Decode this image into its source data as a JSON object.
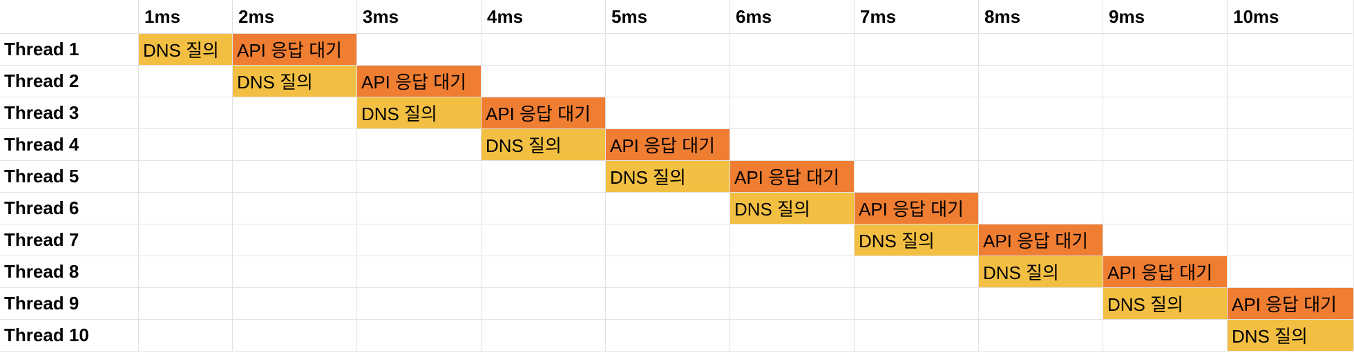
{
  "columns": [
    "1ms",
    "2ms",
    "3ms",
    "4ms",
    "5ms",
    "6ms",
    "7ms",
    "8ms",
    "9ms",
    "10ms"
  ],
  "rows": [
    "Thread 1",
    "Thread 2",
    "Thread 3",
    "Thread 4",
    "Thread 5",
    "Thread 6",
    "Thread 7",
    "Thread 8",
    "Thread 9",
    "Thread 10"
  ],
  "tasks": {
    "dns": {
      "label": "DNS 질의",
      "color": "#f2bf42"
    },
    "api": {
      "label": "API 응답 대기",
      "color": "#ef7d32"
    }
  },
  "schedule": [
    {
      "row": 0,
      "dns_col": 0,
      "api_col": 1
    },
    {
      "row": 1,
      "dns_col": 1,
      "api_col": 2
    },
    {
      "row": 2,
      "dns_col": 2,
      "api_col": 3
    },
    {
      "row": 3,
      "dns_col": 3,
      "api_col": 4
    },
    {
      "row": 4,
      "dns_col": 4,
      "api_col": 5
    },
    {
      "row": 5,
      "dns_col": 5,
      "api_col": 6
    },
    {
      "row": 6,
      "dns_col": 6,
      "api_col": 7
    },
    {
      "row": 7,
      "dns_col": 7,
      "api_col": 8
    },
    {
      "row": 8,
      "dns_col": 8,
      "api_col": 9
    },
    {
      "row": 9,
      "dns_col": 9,
      "api_col": null
    }
  ]
}
